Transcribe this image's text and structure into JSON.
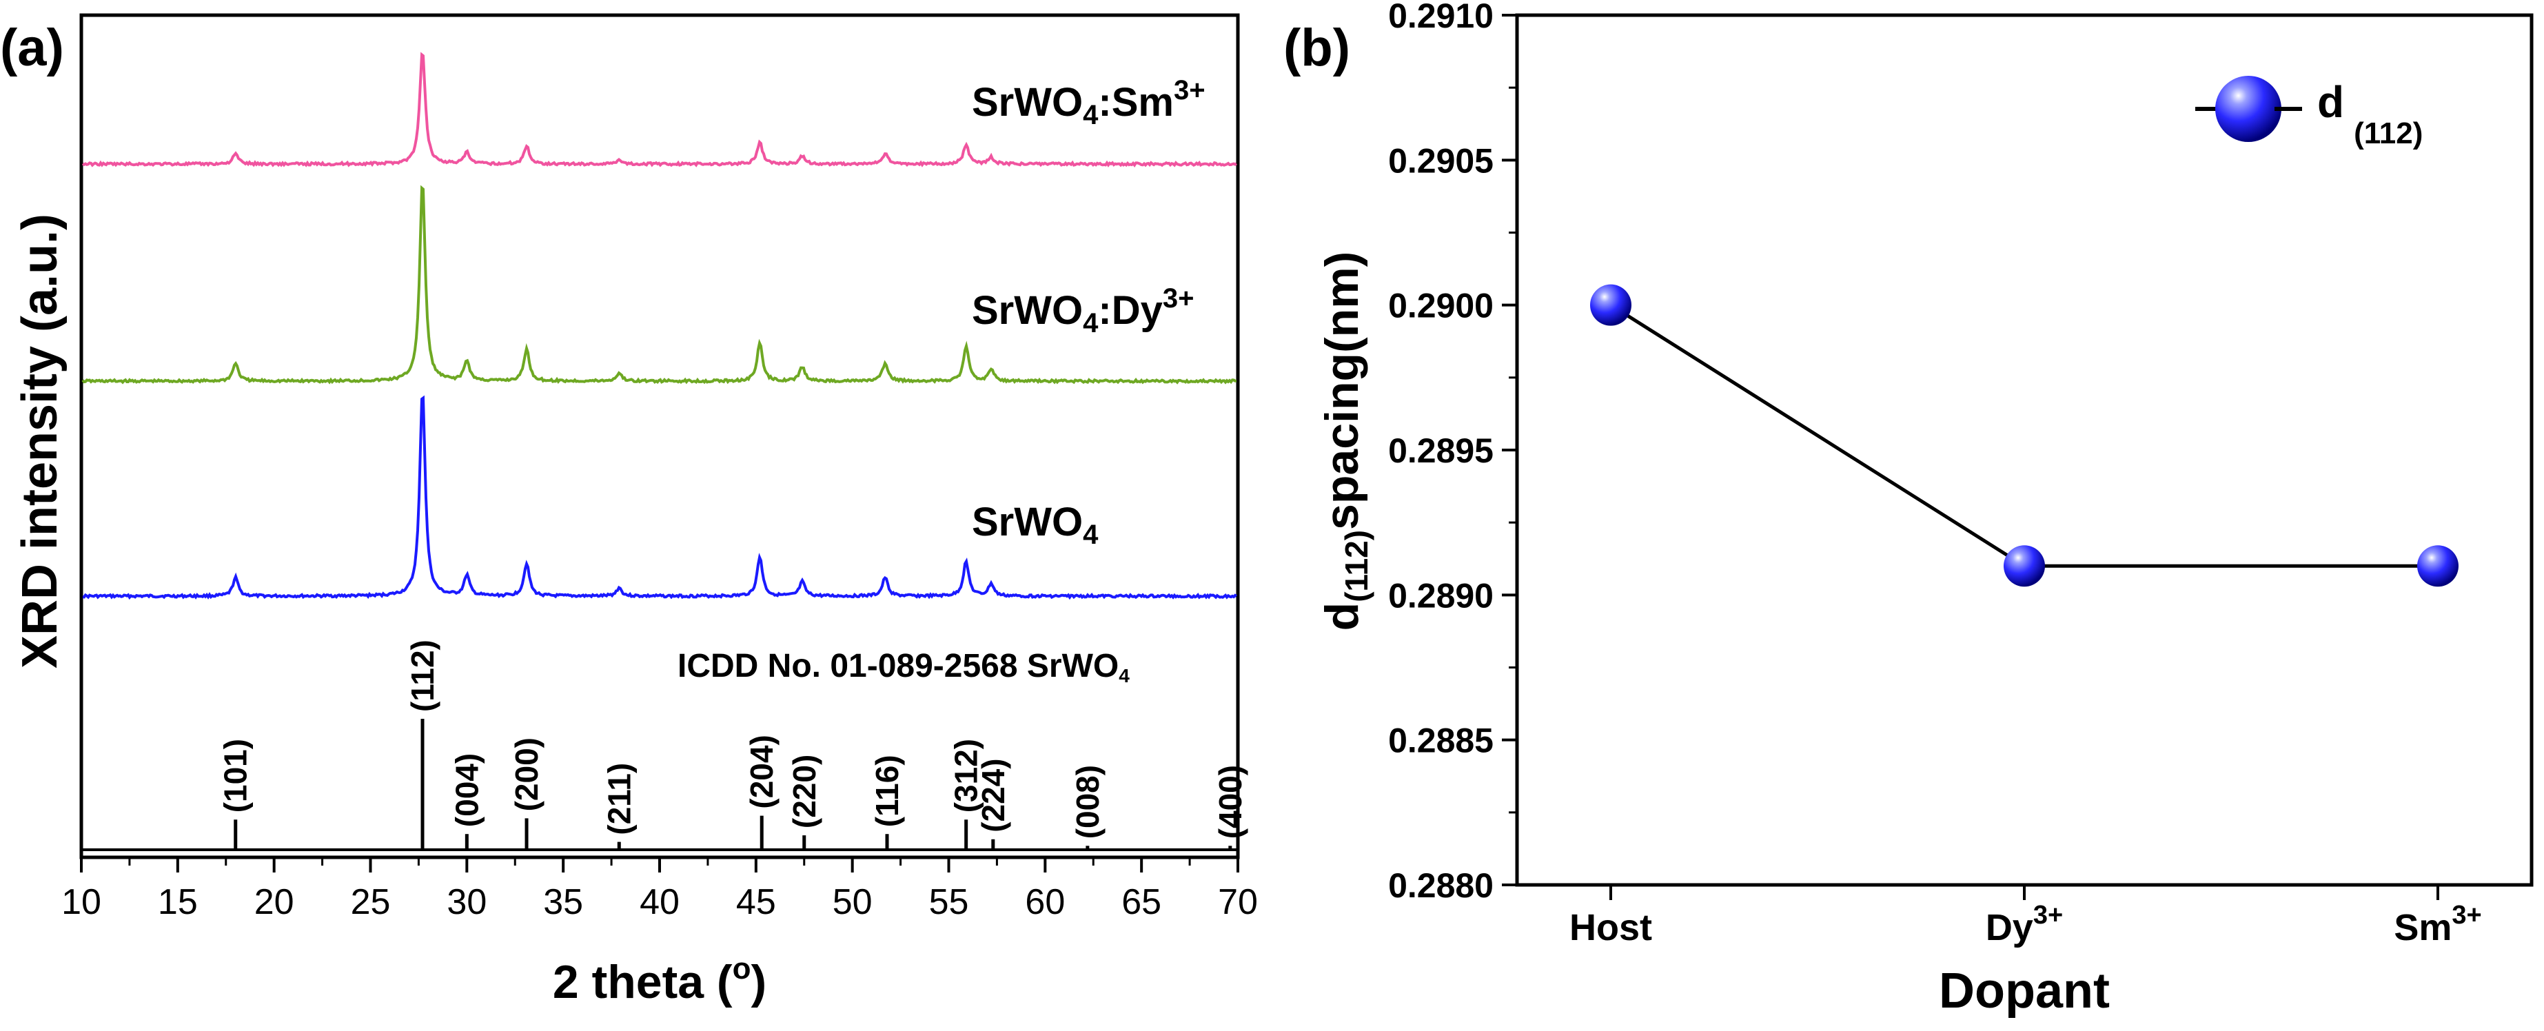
{
  "chart_data": [
    {
      "panel_label": "(a)",
      "type": "line",
      "xlabel": "2 theta (",
      "xlabel_sup": "o",
      "xlabel_end": ")",
      "ylabel": "XRD intensity (a.u.)",
      "xlim": [
        10,
        70
      ],
      "xticks": [
        "10",
        "15",
        "20",
        "25",
        "30",
        "35",
        "40",
        "45",
        "50",
        "55",
        "60",
        "65",
        "70"
      ],
      "peak_positions": [
        18.0,
        27.7,
        30.0,
        33.1,
        37.9,
        45.2,
        47.4,
        51.7,
        55.9,
        57.2
      ],
      "peak_heights": [
        0.09,
        1.0,
        0.1,
        0.16,
        0.04,
        0.19,
        0.07,
        0.09,
        0.17,
        0.06
      ],
      "series": [
        {
          "name": "SrWO4",
          "label_main": "SrWO",
          "label_sub": "4",
          "label_sup": "",
          "color": "#1a1aff",
          "relative_scale": 1.0
        },
        {
          "name": "SrWO4:Dy3+",
          "label_main": "SrWO",
          "label_sub": "4",
          "label_mid": ":Dy",
          "label_sup": "3+",
          "color": "#6ea823",
          "relative_scale": 0.97
        },
        {
          "name": "SrWO4:Sm3+",
          "label_main": "SrWO",
          "label_sub": "4",
          "label_mid": ":Sm",
          "label_sup": "3+",
          "color": "#f0549f",
          "relative_scale": 0.55
        }
      ],
      "reference": {
        "title_main": "ICDD No. 01-089-2568  SrWO",
        "title_sub": "4",
        "lines": [
          {
            "x": 18.0,
            "h": 0.23,
            "label": "(101)"
          },
          {
            "x": 27.7,
            "h": 1.0,
            "label": "(112)"
          },
          {
            "x": 30.0,
            "h": 0.12,
            "label": "(004)"
          },
          {
            "x": 33.1,
            "h": 0.24,
            "label": "(200)"
          },
          {
            "x": 37.9,
            "h": 0.06,
            "label": "(211)"
          },
          {
            "x": 45.3,
            "h": 0.26,
            "label": "(204)"
          },
          {
            "x": 47.5,
            "h": 0.11,
            "label": "(220)"
          },
          {
            "x": 51.8,
            "h": 0.12,
            "label": "(116)"
          },
          {
            "x": 55.9,
            "h": 0.23,
            "label": "(312)"
          },
          {
            "x": 57.3,
            "h": 0.08,
            "label": "(224)"
          },
          {
            "x": 62.2,
            "h": 0.03,
            "label": "(008)"
          },
          {
            "x": 69.6,
            "h": 0.03,
            "label": "(400)"
          }
        ]
      }
    },
    {
      "panel_label": "(b)",
      "type": "line",
      "xlabel": "Dopant",
      "ylabel_main": "d",
      "ylabel_sub": "(112)",
      "ylabel_end": "spacing(nm)",
      "categories": [
        {
          "main": "Host",
          "sup": ""
        },
        {
          "main": "Dy",
          "sup": "3+"
        },
        {
          "main": "Sm",
          "sup": "3+"
        }
      ],
      "values": [
        0.29,
        0.2891,
        0.2891
      ],
      "ylim": [
        0.288,
        0.291
      ],
      "yticks": [
        "0.2880",
        "0.2885",
        "0.2890",
        "0.2895",
        "0.2900",
        "0.2905",
        "0.2910"
      ],
      "legend": {
        "label_main": "d",
        "label_sub": "(112)",
        "position": "top-right"
      },
      "marker_color": "#1a1aee"
    }
  ]
}
